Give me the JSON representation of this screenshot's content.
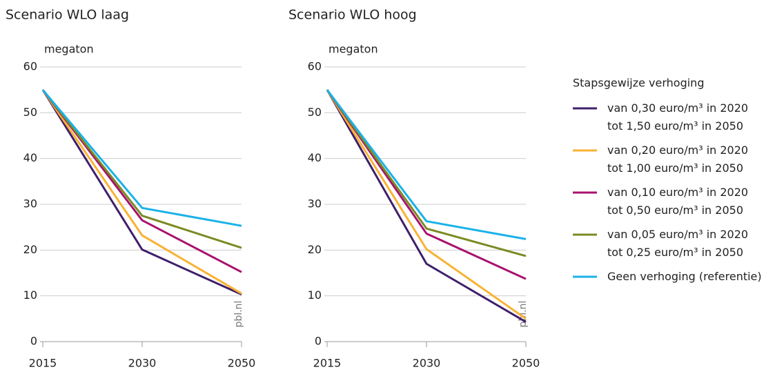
{
  "chart_data": [
    {
      "type": "line",
      "title": "Scenario WLO laag",
      "y_label": "megaton",
      "source": "pbl.nl",
      "categories": [
        "2015",
        "2030",
        "2050"
      ],
      "ylim": [
        0,
        60
      ],
      "yticks": [
        0,
        10,
        20,
        30,
        40,
        50,
        60
      ],
      "grid": true,
      "legend_title": "Stapsgewijze verhoging",
      "series": [
        {
          "name": "van 0,30 euro/m³ in 2020\ntot 1,50 euro/m³ in 2050",
          "color": "#3f1f6b",
          "values": [
            55,
            20.1,
            10.3
          ]
        },
        {
          "name": "van 0,20 euro/m³ in 2020\ntot 1,00 euro/m³ in 2050",
          "color": "#f9b233",
          "values": [
            55,
            23.2,
            10.5
          ]
        },
        {
          "name": "van 0,10 euro/m³ in 2020\ntot 0,50 euro/m³ in 2050",
          "color": "#a8126e",
          "values": [
            55,
            26.5,
            15.2
          ]
        },
        {
          "name": "van 0,05 euro/m³ in 2020\ntot 0,25 euro/m³ in 2050",
          "color": "#7a8b22",
          "values": [
            55,
            27.5,
            20.5
          ]
        },
        {
          "name": "Geen verhoging (referentie)",
          "color": "#19b2e8",
          "values": [
            55,
            29.2,
            25.3
          ]
        }
      ]
    },
    {
      "type": "line",
      "title": "Scenario WLO hoog",
      "y_label": "megaton",
      "source": "pbl.nl",
      "categories": [
        "2015",
        "2030",
        "2050"
      ],
      "ylim": [
        0,
        60
      ],
      "yticks": [
        0,
        10,
        20,
        30,
        40,
        50,
        60
      ],
      "grid": true,
      "series": [
        {
          "color": "#3f1f6b",
          "values": [
            55,
            17,
            4.3
          ]
        },
        {
          "color": "#f9b233",
          "values": [
            55,
            20.2,
            5
          ]
        },
        {
          "color": "#a8126e",
          "values": [
            55,
            23.6,
            13.7
          ]
        },
        {
          "color": "#7a8b22",
          "values": [
            55,
            24.7,
            18.7
          ]
        },
        {
          "color": "#19b2e8",
          "values": [
            55,
            26.3,
            22.4
          ]
        }
      ]
    }
  ]
}
